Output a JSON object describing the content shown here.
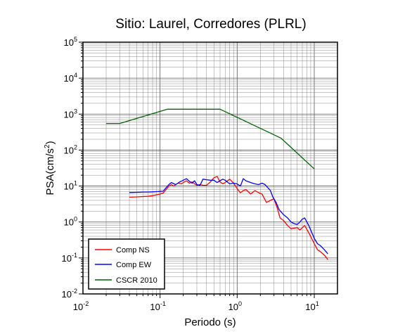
{
  "chart_data": {
    "type": "line",
    "title": "Sitio: Laurel, Corredores (PLRL)",
    "xlabel": "Periodo (s)",
    "ylabel_main": "PSA(cm/s",
    "ylabel_sup": "2",
    "ylabel_close": ")",
    "x_scale": "log",
    "y_scale": "log",
    "xlim": [
      0.01,
      20
    ],
    "ylim": [
      0.01,
      100000
    ],
    "grid": true,
    "legend_position": "bottom-left",
    "x_ticks": [
      {
        "base": "10",
        "exp": "-2",
        "value": 0.01
      },
      {
        "base": "10",
        "exp": "-1",
        "value": 0.1
      },
      {
        "base": "10",
        "exp": "0",
        "value": 1
      },
      {
        "base": "10",
        "exp": "1",
        "value": 10
      }
    ],
    "y_ticks": [
      {
        "base": "10",
        "exp": "-2",
        "value": 0.01
      },
      {
        "base": "10",
        "exp": "-1",
        "value": 0.1
      },
      {
        "base": "10",
        "exp": "0",
        "value": 1
      },
      {
        "base": "10",
        "exp": "1",
        "value": 10
      },
      {
        "base": "10",
        "exp": "2",
        "value": 100
      },
      {
        "base": "10",
        "exp": "3",
        "value": 1000
      },
      {
        "base": "10",
        "exp": "4",
        "value": 10000
      },
      {
        "base": "10",
        "exp": "5",
        "value": 100000
      }
    ],
    "series": [
      {
        "name": "Comp NS",
        "color": "#ff0000",
        "points": [
          [
            0.04,
            4.9
          ],
          [
            0.05,
            5.0
          ],
          [
            0.06,
            5.1
          ],
          [
            0.07,
            5.2
          ],
          [
            0.08,
            5.4
          ],
          [
            0.09,
            5.7
          ],
          [
            0.1,
            6.0
          ],
          [
            0.11,
            6.4
          ],
          [
            0.12,
            8.0
          ],
          [
            0.13,
            10.0
          ],
          [
            0.14,
            11.0
          ],
          [
            0.15,
            10.0
          ],
          [
            0.17,
            12.0
          ],
          [
            0.19,
            11.5
          ],
          [
            0.2,
            12.5
          ],
          [
            0.22,
            14.0
          ],
          [
            0.24,
            12.0
          ],
          [
            0.26,
            13.0
          ],
          [
            0.28,
            11.5
          ],
          [
            0.3,
            10.5
          ],
          [
            0.33,
            11.0
          ],
          [
            0.36,
            10.5
          ],
          [
            0.4,
            10.5
          ],
          [
            0.45,
            13.0
          ],
          [
            0.5,
            17.0
          ],
          [
            0.55,
            18.5
          ],
          [
            0.6,
            13.0
          ],
          [
            0.65,
            11.5
          ],
          [
            0.7,
            12.5
          ],
          [
            0.8,
            15.5
          ],
          [
            0.9,
            12.0
          ],
          [
            1.0,
            8.5
          ],
          [
            1.1,
            6.5
          ],
          [
            1.2,
            7.5
          ],
          [
            1.3,
            8.0
          ],
          [
            1.5,
            6.0
          ],
          [
            1.7,
            7.5
          ],
          [
            1.9,
            6.5
          ],
          [
            2.1,
            6.0
          ],
          [
            2.4,
            3.5
          ],
          [
            2.7,
            4.0
          ],
          [
            3.0,
            4.4
          ],
          [
            3.3,
            2.5
          ],
          [
            3.6,
            1.3
          ],
          [
            4.0,
            1.1
          ],
          [
            4.5,
            0.8
          ],
          [
            5.0,
            0.65
          ],
          [
            6.0,
            0.7
          ],
          [
            6.5,
            0.6
          ],
          [
            7.5,
            0.8
          ],
          [
            8.5,
            0.5
          ],
          [
            10.0,
            0.25
          ],
          [
            11.0,
            0.17
          ],
          [
            12.0,
            0.15
          ],
          [
            13.5,
            0.12
          ],
          [
            15.0,
            0.09
          ]
        ]
      },
      {
        "name": "Comp EW",
        "color": "#0000ff",
        "points": [
          [
            0.04,
            6.6
          ],
          [
            0.05,
            6.7
          ],
          [
            0.06,
            6.8
          ],
          [
            0.07,
            6.8
          ],
          [
            0.08,
            6.9
          ],
          [
            0.09,
            7.0
          ],
          [
            0.1,
            7.1
          ],
          [
            0.11,
            7.2
          ],
          [
            0.12,
            9.0
          ],
          [
            0.13,
            11.0
          ],
          [
            0.14,
            12.5
          ],
          [
            0.16,
            11.0
          ],
          [
            0.18,
            13.0
          ],
          [
            0.2,
            14.5
          ],
          [
            0.22,
            16.0
          ],
          [
            0.24,
            13.5
          ],
          [
            0.26,
            12.0
          ],
          [
            0.28,
            14.0
          ],
          [
            0.3,
            11.0
          ],
          [
            0.33,
            10.5
          ],
          [
            0.36,
            15.5
          ],
          [
            0.4,
            15.0
          ],
          [
            0.45,
            14.5
          ],
          [
            0.5,
            14.5
          ],
          [
            0.55,
            12.5
          ],
          [
            0.6,
            14.0
          ],
          [
            0.65,
            15.5
          ],
          [
            0.7,
            14.5
          ],
          [
            0.8,
            11.5
          ],
          [
            0.9,
            12.0
          ],
          [
            1.0,
            11.5
          ],
          [
            1.1,
            10.0
          ],
          [
            1.2,
            16.0
          ],
          [
            1.3,
            14.0
          ],
          [
            1.5,
            12.5
          ],
          [
            1.7,
            11.5
          ],
          [
            1.9,
            11.0
          ],
          [
            2.1,
            12.0
          ],
          [
            2.3,
            11.0
          ],
          [
            2.5,
            9.0
          ],
          [
            2.7,
            7.5
          ],
          [
            2.9,
            5.0
          ],
          [
            3.2,
            3.5
          ],
          [
            3.5,
            2.2
          ],
          [
            4.0,
            1.6
          ],
          [
            4.5,
            1.3
          ],
          [
            5.0,
            1.0
          ],
          [
            5.5,
            0.9
          ],
          [
            6.0,
            0.85
          ],
          [
            6.5,
            1.0
          ],
          [
            7.0,
            1.2
          ],
          [
            7.5,
            1.3
          ],
          [
            8.5,
            0.8
          ],
          [
            10.0,
            0.35
          ],
          [
            11.0,
            0.25
          ],
          [
            12.0,
            0.22
          ],
          [
            13.5,
            0.17
          ],
          [
            15.0,
            0.13
          ]
        ]
      },
      {
        "name": "CSCR 2010",
        "color": "#006400",
        "points": [
          [
            0.02,
            550
          ],
          [
            0.03,
            550
          ],
          [
            0.125,
            1370
          ],
          [
            0.6,
            1370
          ],
          [
            3.7,
            215
          ],
          [
            10.0,
            30
          ]
        ]
      }
    ]
  }
}
